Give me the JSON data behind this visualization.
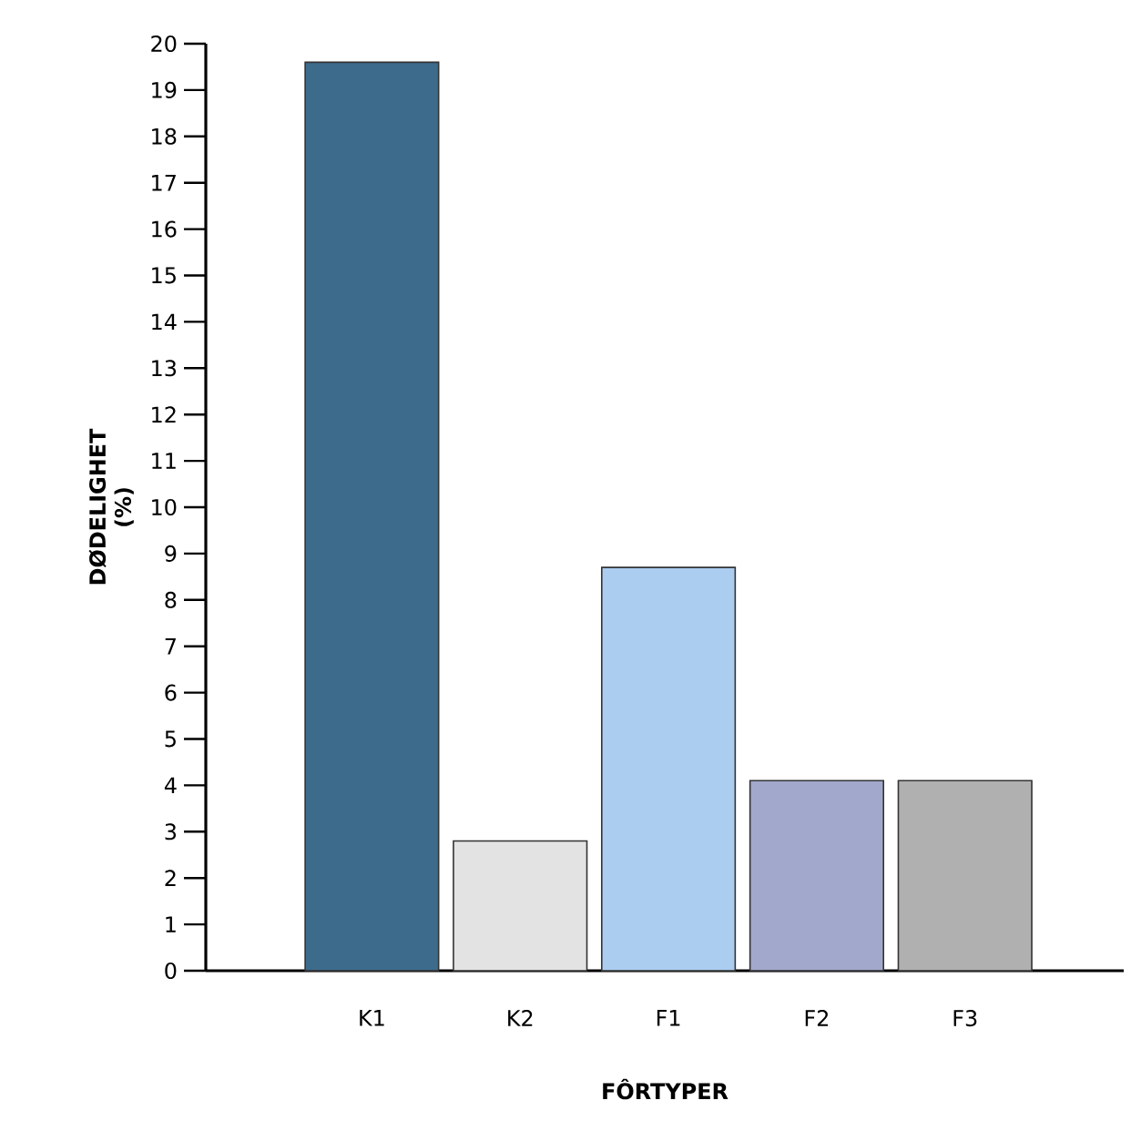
{
  "chart_data": {
    "type": "bar",
    "xlabel": "FÔRTYPER",
    "ylabel": "DØDELIGHET (%)",
    "categories": [
      "K1",
      "K2",
      "F1",
      "F2",
      "F3"
    ],
    "values": [
      19.6,
      2.8,
      8.7,
      4.1,
      4.1
    ],
    "colors": [
      "#3d6b8c",
      "#e3e3e3",
      "#abcdf0",
      "#a2a8cc",
      "#b0b0b0"
    ],
    "ylim": [
      0,
      20
    ],
    "yticks": [
      0,
      1,
      2,
      3,
      4,
      5,
      6,
      7,
      8,
      9,
      10,
      11,
      12,
      13,
      14,
      15,
      16,
      17,
      18,
      19,
      20
    ],
    "grid": false
  }
}
